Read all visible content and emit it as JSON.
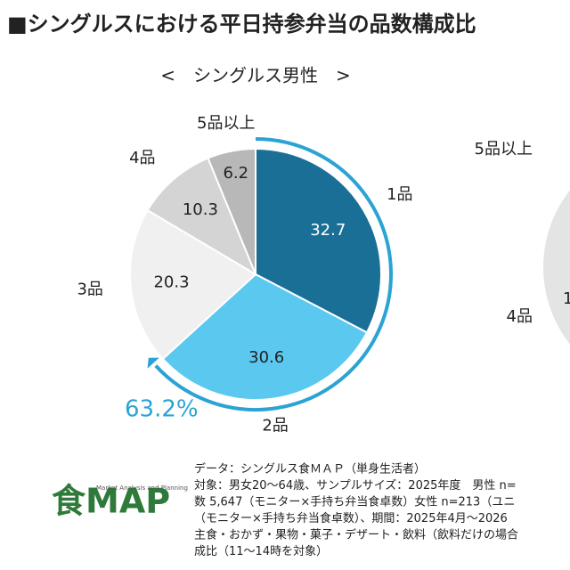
{
  "chart_data": {
    "type": "pie",
    "title": "■シングルスにおける平日持参弁当の品数構成比",
    "subtitle": "<　シングルス男性　>",
    "categories": [
      "1品",
      "2品",
      "3品",
      "4品",
      "5品以上"
    ],
    "values": [
      32.7,
      30.6,
      20.3,
      10.3,
      6.2
    ],
    "colors": [
      "#1a6f96",
      "#5bc8f0",
      "#f0f0f0",
      "#d4d4d4",
      "#b8b8b8"
    ],
    "label_colors": [
      "#ffffff",
      "#222222",
      "#222222",
      "#222222",
      "#222222"
    ],
    "highlight": {
      "value": 63.2,
      "label": "63.2%",
      "color": "#2ba3d4"
    }
  },
  "clipped_chart_labels": [
    "5品以上",
    "4品",
    "1"
  ],
  "footnote": [
    "データ：シングルス食ＭＡＰ（単身生活者）",
    "対象：男女20～64歳、サンプルサイズ：2025年度　男性 n=",
    "数 5,647（モニター×手持ち弁当食卓数）女性 n=213（ユニ",
    "（モニター×手持ち弁当食卓数）、期間：2025年4月～2026",
    "主食・おかず・果物・菓子・デザート・飲料（飲料だけの場合",
    "成比（11～14時を対象）"
  ],
  "logo": {
    "name": "食MAP",
    "tagline": "Market Analysis and Planning"
  }
}
